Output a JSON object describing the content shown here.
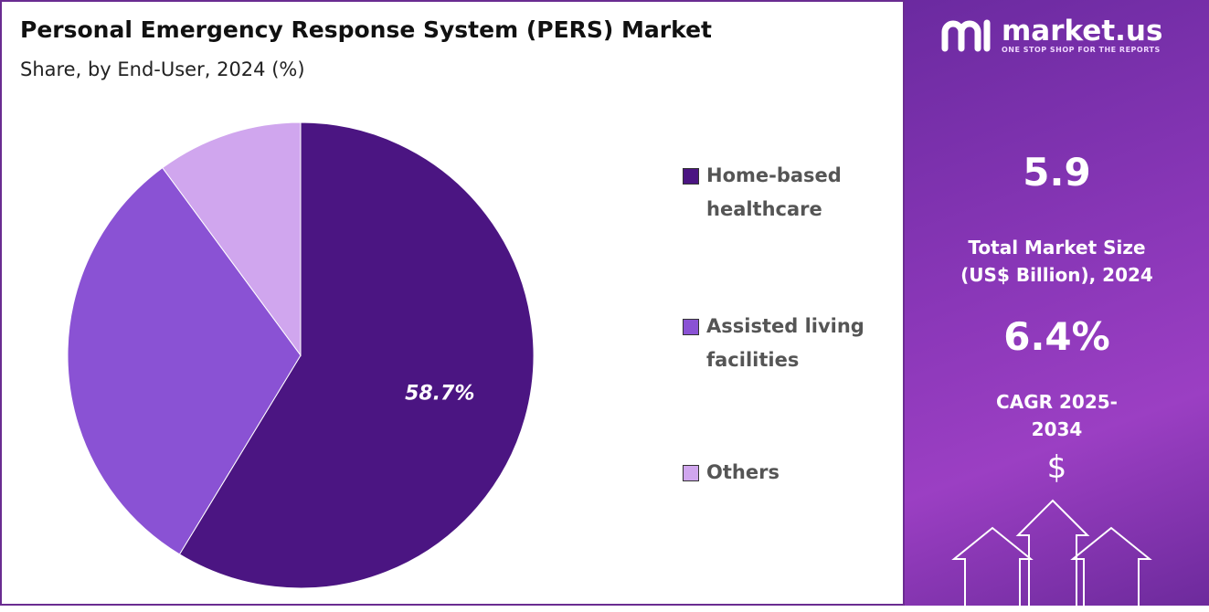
{
  "chart_data": {
    "type": "pie",
    "title": "Personal Emergency Response System (PERS) Market",
    "subtitle": "Share, by End-User, 2024 (%)",
    "categories": [
      "Home-based healthcare",
      "Assisted living facilities",
      "Others"
    ],
    "values": [
      58.7,
      31.2,
      10.1
    ],
    "value_labels": [
      "58.7%",
      null,
      null
    ],
    "colors": [
      "#4b1582",
      "#8a52d4",
      "#d0a6ee"
    ],
    "legend": "right"
  },
  "panel": {
    "brand": "market.us",
    "tagline": "ONE STOP SHOP FOR THE REPORTS",
    "market_size": "5.9",
    "market_size_label": "Total Market Size (US$ Billion), 2024",
    "cagr": "6.4%",
    "cagr_label": "CAGR 2025-2034",
    "symbol": "$"
  }
}
